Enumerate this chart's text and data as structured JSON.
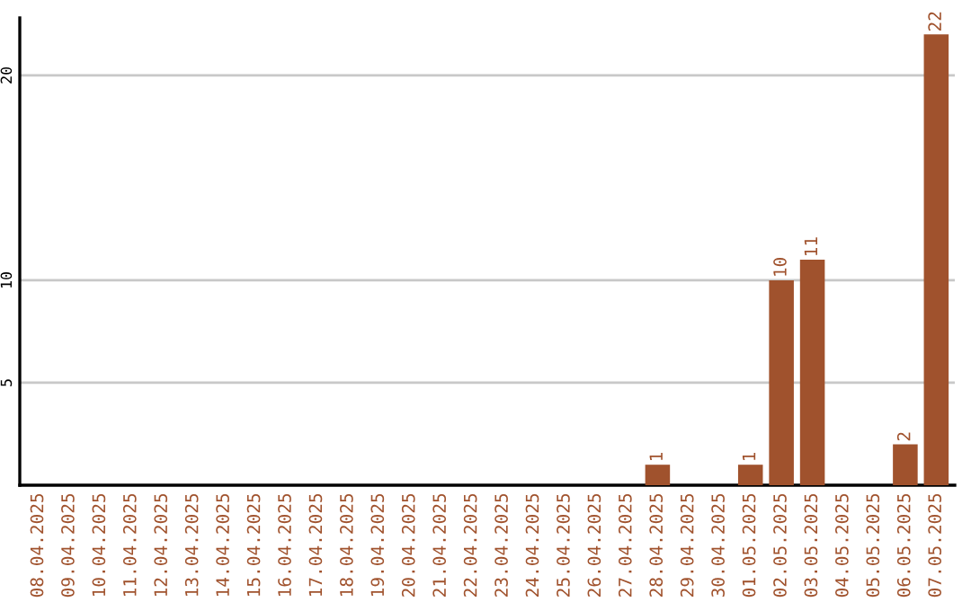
{
  "chart_data": {
    "type": "bar",
    "categories": [
      "08.04.2025",
      "09.04.2025",
      "10.04.2025",
      "11.04.2025",
      "12.04.2025",
      "13.04.2025",
      "14.04.2025",
      "15.04.2025",
      "16.04.2025",
      "17.04.2025",
      "18.04.2025",
      "19.04.2025",
      "20.04.2025",
      "21.04.2025",
      "22.04.2025",
      "23.04.2025",
      "24.04.2025",
      "25.04.2025",
      "26.04.2025",
      "27.04.2025",
      "28.04.2025",
      "29.04.2025",
      "30.04.2025",
      "01.05.2025",
      "02.05.2025",
      "03.05.2025",
      "04.05.2025",
      "05.05.2025",
      "06.05.2025",
      "07.05.2025"
    ],
    "values": [
      0,
      0,
      0,
      0,
      0,
      0,
      0,
      0,
      0,
      0,
      0,
      0,
      0,
      0,
      0,
      0,
      0,
      0,
      0,
      0,
      1,
      0,
      0,
      1,
      10,
      11,
      0,
      0,
      2,
      22
    ],
    "value_labels": [
      null,
      null,
      null,
      null,
      null,
      null,
      null,
      null,
      null,
      null,
      null,
      null,
      null,
      null,
      null,
      null,
      null,
      null,
      null,
      null,
      "1",
      null,
      null,
      "1",
      "10",
      "11",
      null,
      null,
      "2",
      "22"
    ],
    "color": "#a0522d",
    "ylim": [
      0,
      22.8
    ],
    "yticks": [
      5,
      10,
      20
    ],
    "grid": "y"
  }
}
